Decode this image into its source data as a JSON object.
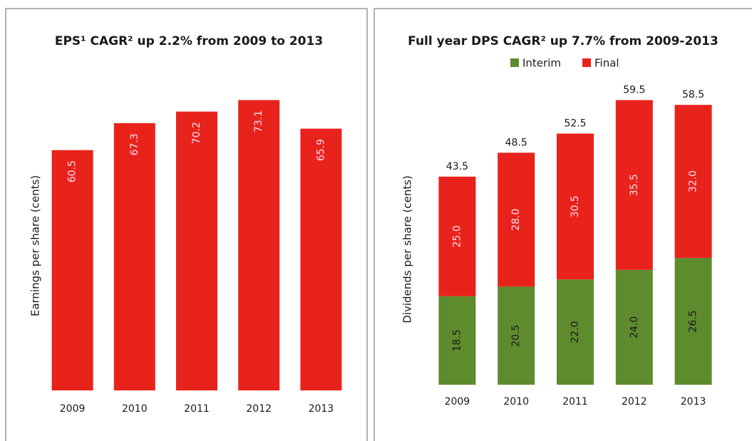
{
  "chart_data": [
    {
      "type": "bar",
      "title": "EPS¹ CAGR² up 2.2% from 2009 to 2013",
      "y_label": "Earnings per share (cents)",
      "categories": [
        "2009",
        "2010",
        "2011",
        "2012",
        "2013"
      ],
      "values": [
        60.5,
        67.3,
        70.2,
        73.1,
        65.9
      ],
      "color": "#e8231c",
      "ylim": [
        0,
        80
      ]
    },
    {
      "type": "stacked_bar",
      "title": "Full year DPS CAGR² up 7.7% from 2009-2013",
      "y_label": "Dividends per share (cents)",
      "categories": [
        "2009",
        "2010",
        "2011",
        "2012",
        "2013"
      ],
      "series": [
        {
          "name": "Interim",
          "color": "#5f8b2f",
          "values": [
            18.5,
            20.5,
            22,
            24,
            26.5
          ],
          "value_labels": [
            "18.5",
            "20.5",
            "22.0",
            "24.0",
            "26.5"
          ]
        },
        {
          "name": "Final",
          "color": "#e8231c",
          "values": [
            25,
            28,
            30.5,
            35.5,
            32
          ],
          "value_labels": [
            "25.0",
            "28.0",
            "30.5",
            "35.5",
            "32.0"
          ]
        }
      ],
      "totals": [
        43.5,
        48.5,
        52.5,
        59.5,
        58.5
      ],
      "ylim": [
        0,
        70
      ]
    }
  ]
}
